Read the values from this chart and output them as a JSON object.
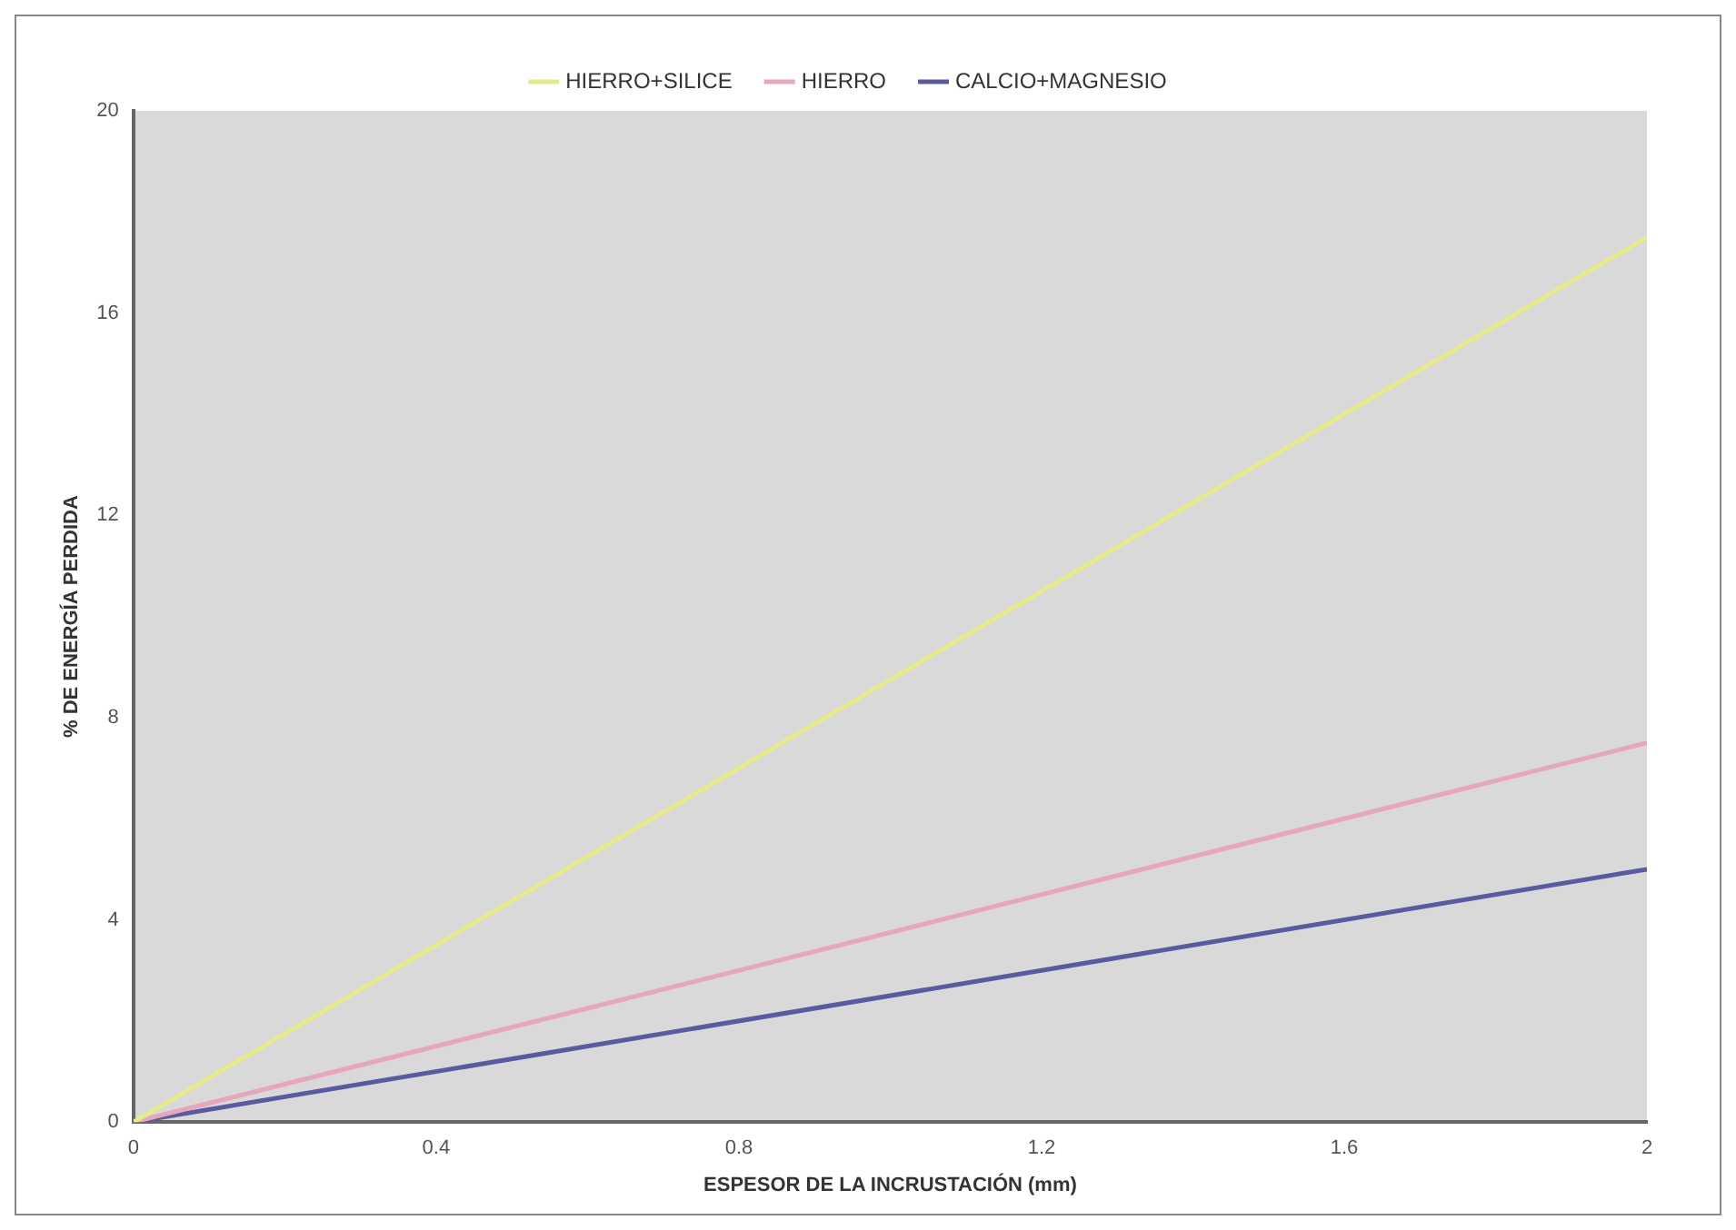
{
  "chart_data": {
    "type": "line",
    "xlabel": "ESPESOR DE LA INCRUSTACIÓN (mm)",
    "ylabel": "% DE ENERGÍA PERDIDA",
    "x": [
      0,
      2
    ],
    "series": [
      {
        "name": "HIERRO+SILICE",
        "color": "#e6ea8c",
        "values": [
          0,
          17.5
        ]
      },
      {
        "name": "HIERRO",
        "color": "#e6a6bc",
        "values": [
          0,
          7.5
        ]
      },
      {
        "name": "CALCIO+MAGNESIO",
        "color": "#5a5aa0",
        "values": [
          0,
          5
        ]
      }
    ],
    "xlim": [
      0,
      2
    ],
    "xticks": [
      0,
      0.4,
      0.8,
      1.2,
      1.6,
      2
    ],
    "ylim": [
      0,
      20
    ],
    "yticks": [
      0,
      4,
      8,
      12,
      16,
      20
    ],
    "grid": false,
    "legend": "top",
    "marker": "none",
    "line_style": "solid"
  }
}
